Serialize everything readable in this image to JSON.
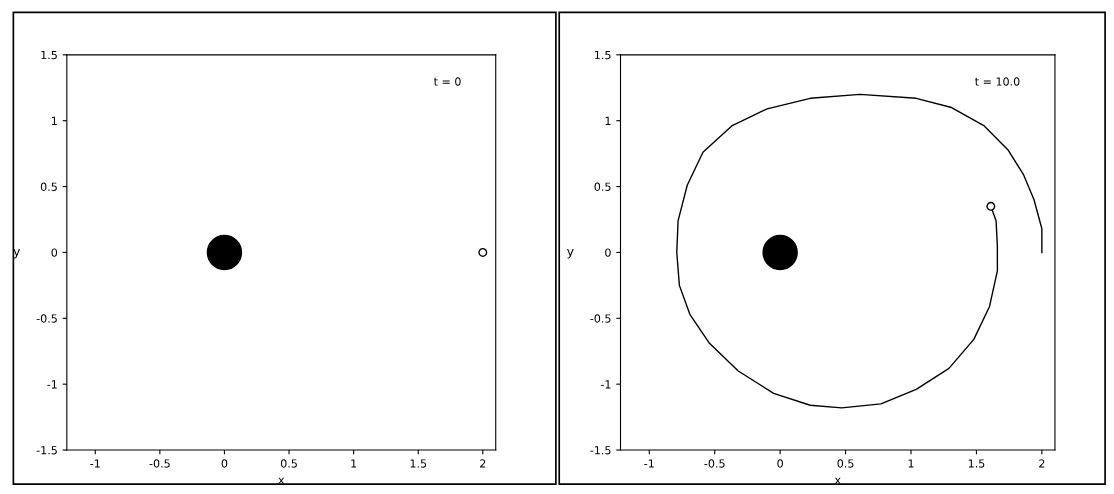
{
  "chart_data": [
    {
      "type": "scatter",
      "xlabel": "x",
      "ylabel": "y",
      "xlim": [
        -1.22,
        2.1
      ],
      "ylim": [
        -1.5,
        1.5
      ],
      "xticks": [
        -1,
        -0.5,
        0,
        0.5,
        1,
        1.5,
        2
      ],
      "yticks": [
        -1.5,
        -1,
        -0.5,
        0,
        0.5,
        1,
        1.5
      ],
      "annotations": [
        "t = 0"
      ],
      "grid": false,
      "legend": false,
      "series": [
        {
          "type": "bubble",
          "color": "#000000",
          "x": [
            0
          ],
          "values": [
            0
          ],
          "sizes": [
            1
          ]
        },
        {
          "type": "scatter",
          "color": "#000000",
          "marker": "circle",
          "x": [
            2
          ],
          "values": [
            0
          ]
        }
      ]
    },
    {
      "type": "scatter",
      "xlabel": "x",
      "ylabel": "y",
      "xlim": [
        -1.22,
        2.1
      ],
      "ylim": [
        -1.5,
        1.5
      ],
      "xticks": [
        -1,
        -0.5,
        0,
        0.5,
        1,
        1.5,
        2
      ],
      "yticks": [
        -1.5,
        -1,
        -0.5,
        0,
        0.5,
        1,
        1.5
      ],
      "annotations": [
        "t = 10.0"
      ],
      "grid": false,
      "legend": false,
      "series": [
        {
          "type": "line",
          "color": "#000000",
          "marker": "none",
          "line_style": "solid",
          "x": [
            2.0,
            2.0,
            1.94,
            1.86,
            1.74,
            1.56,
            1.31,
            1.04,
            0.61,
            0.23,
            -0.1,
            -0.37,
            -0.59,
            -0.71,
            -0.78,
            -0.79,
            -0.77,
            -0.69,
            -0.54,
            -0.32,
            -0.05,
            0.23,
            0.47,
            0.77,
            1.04,
            1.29,
            1.48,
            1.6,
            1.66,
            1.66,
            1.65,
            1.61
          ],
          "values": [
            0.0,
            0.18,
            0.4,
            0.59,
            0.78,
            0.96,
            1.1,
            1.17,
            1.2,
            1.17,
            1.09,
            0.96,
            0.76,
            0.51,
            0.24,
            0.0,
            -0.25,
            -0.47,
            -0.69,
            -0.9,
            -1.07,
            -1.16,
            -1.18,
            -1.15,
            -1.04,
            -0.88,
            -0.66,
            -0.41,
            -0.14,
            0.05,
            0.24,
            0.35
          ]
        },
        {
          "type": "bubble",
          "color": "#000000",
          "x": [
            0
          ],
          "values": [
            0
          ],
          "sizes": [
            1
          ]
        },
        {
          "type": "scatter",
          "color": "#000000",
          "marker": "circle",
          "x": [
            1.61
          ],
          "values": [
            0.35
          ]
        }
      ]
    }
  ]
}
